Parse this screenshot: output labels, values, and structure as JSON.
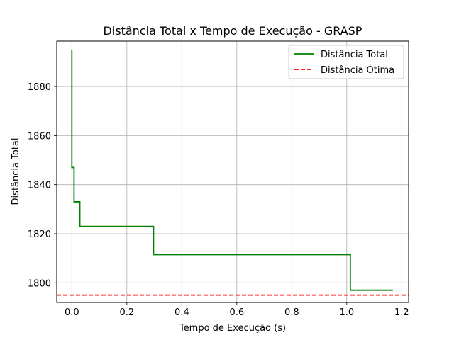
{
  "chart_data": {
    "type": "line",
    "title": "Distância Total x Tempo de Execução - GRASP",
    "xlabel": "Tempo de Execução (s)",
    "ylabel": "Distância Total",
    "xlim": [
      -0.055,
      1.225
    ],
    "ylim": [
      1792.0,
      1898.5
    ],
    "xticks": [
      0.0,
      0.2,
      0.4,
      0.6,
      0.8,
      1.0,
      1.2
    ],
    "xtick_labels": [
      "0.0",
      "0.2",
      "0.4",
      "0.6",
      "0.8",
      "1.0",
      "1.2"
    ],
    "yticks": [
      1800,
      1820,
      1840,
      1860,
      1880
    ],
    "ytick_labels": [
      "1800",
      "1820",
      "1840",
      "1860",
      "1880"
    ],
    "grid": true,
    "legend_position": "top-right",
    "series": [
      {
        "name": "Distância Total",
        "color": "#008000",
        "style": "solid",
        "x": [
          0.0,
          0.0,
          0.002,
          0.002,
          0.008,
          0.008,
          0.029,
          0.029,
          0.297,
          0.297,
          1.013,
          1.013,
          1.168
        ],
        "y": [
          1895,
          1847,
          1847,
          1847,
          1847,
          1833,
          1833,
          1823,
          1823,
          1811.5,
          1811.5,
          1797,
          1797
        ]
      },
      {
        "name": "Distância Ótima",
        "color": "#ff0000",
        "style": "dashed",
        "y_constant": 1795
      }
    ]
  }
}
